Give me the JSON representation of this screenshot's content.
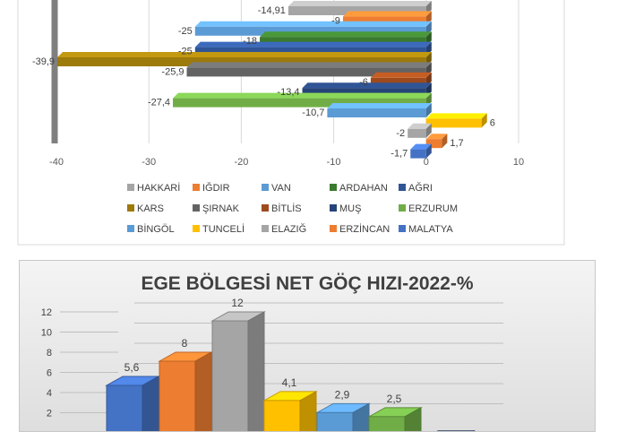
{
  "chart_data": [
    {
      "type": "bar",
      "orientation": "horizontal",
      "title": "",
      "xlabel": "",
      "ylabel": "",
      "xlim": [
        -40,
        10
      ],
      "x_ticks": [
        -40,
        -30,
        -20,
        -10,
        0,
        10
      ],
      "x_tick_labels": [
        "-40",
        "-30",
        "-20",
        "-10",
        "0",
        "10"
      ],
      "grid": true,
      "legend_position": "bottom",
      "series": [
        {
          "name": "HAKKARİ",
          "value": -14.91,
          "label": "-14,91",
          "color": "#a5a5a5"
        },
        {
          "name": "IĞDIR",
          "value": -9,
          "label": "-9",
          "color": "#ed7d31"
        },
        {
          "name": "VAN",
          "value": -25,
          "label": "-25",
          "color": "#5b9bd5"
        },
        {
          "name": "ARDAHAN",
          "value": -18,
          "label": "-18",
          "color": "#3a7a2e"
        },
        {
          "name": "AĞRI",
          "value": -25,
          "label": "-25",
          "color": "#2f5597"
        },
        {
          "name": "KARS",
          "value": -39.9,
          "label": "-39,9",
          "color": "#9c7a0c"
        },
        {
          "name": "ŞIRNAK",
          "value": -25.9,
          "label": "-25,9",
          "color": "#636363"
        },
        {
          "name": "BİTLİS",
          "value": -6,
          "label": "-6",
          "color": "#9e4a1c"
        },
        {
          "name": "MUŞ",
          "value": -13.4,
          "label": "-13,4",
          "color": "#264478"
        },
        {
          "name": "ERZURUM",
          "value": -27.4,
          "label": "-27,4",
          "color": "#70ad47"
        },
        {
          "name": "BİNGÖL",
          "value": -10.7,
          "label": "-10,7",
          "color": "#5b9bd5"
        },
        {
          "name": "TUNCELİ",
          "value": 6,
          "label": "6",
          "color": "#ffc000"
        },
        {
          "name": "ELAZIĞ",
          "value": -2,
          "label": "-2",
          "color": "#a5a5a5"
        },
        {
          "name": "ERZİNCAN",
          "value": 1.7,
          "label": "1,7",
          "color": "#ed7d31"
        },
        {
          "name": "MALATYA",
          "value": -1.7,
          "label": "-1,7",
          "color": "#4472c4"
        }
      ]
    },
    {
      "type": "bar",
      "orientation": "vertical",
      "title": "EGE BÖLGESİ NET GÖÇ HIZI-2022-%",
      "xlabel": "",
      "ylabel": "",
      "ylim": [
        0,
        12
      ],
      "y_ticks": [
        2,
        4,
        6,
        8,
        10,
        12
      ],
      "y_tick_labels": [
        "2",
        "4",
        "6",
        "8",
        "10",
        "12"
      ],
      "grid": true,
      "series": [
        {
          "value": 5.6,
          "label": "5,6",
          "color": "#4472c4"
        },
        {
          "value": 8,
          "label": "8",
          "color": "#ed7d31"
        },
        {
          "value": 12,
          "label": "12",
          "color": "#a5a5a5"
        },
        {
          "value": 4.1,
          "label": "4,1",
          "color": "#ffc000"
        },
        {
          "value": 2.9,
          "label": "2,9",
          "color": "#5b9bd5"
        },
        {
          "value": 2.5,
          "label": "2,5",
          "color": "#70ad47"
        },
        {
          "value": 0.2,
          "label": "",
          "color": "#264478"
        },
        {
          "value": -0.3,
          "label": "",
          "color": "#9e480e"
        }
      ]
    }
  ]
}
